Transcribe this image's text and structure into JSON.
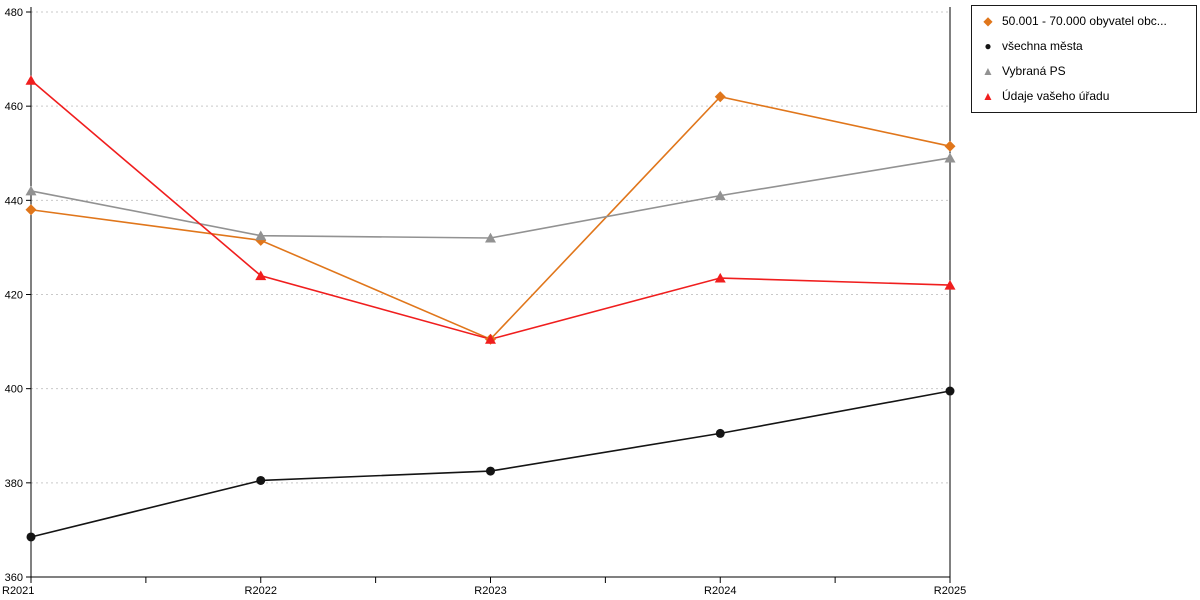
{
  "chart_data": {
    "type": "line",
    "title": "",
    "xlabel": "",
    "ylabel": "",
    "categories": [
      "R2021",
      "R2022",
      "R2023",
      "R2024",
      "R2025"
    ],
    "series": [
      {
        "name": "50.001 - 70.000 obyvatel obc...",
        "color": "#E0761B",
        "marker": "diamond",
        "values": [
          438,
          431.5,
          410.5,
          462,
          451.5
        ]
      },
      {
        "name": "všechna města",
        "color": "#141414",
        "marker": "circle",
        "values": [
          368.5,
          380.5,
          382.5,
          390.5,
          399.5
        ]
      },
      {
        "name": "Vybraná PS",
        "color": "#929292",
        "marker": "triangle",
        "values": [
          442,
          432.5,
          432,
          441,
          449
        ]
      },
      {
        "name": "Údaje vašeho úřadu",
        "color": "#F01E1E",
        "marker": "triangle",
        "values": [
          465.5,
          424,
          410.5,
          423.5,
          422
        ]
      }
    ],
    "ylim": [
      360,
      480
    ],
    "ytick_step": 20,
    "grid": "horizontal-dotted",
    "legend_position": "top-right",
    "axis_color": "#000000",
    "grid_color": "#c9c9c9"
  }
}
